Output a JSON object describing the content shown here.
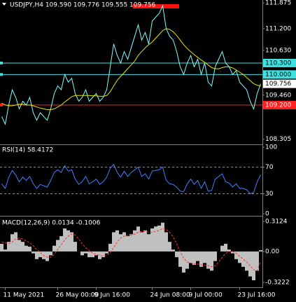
{
  "chart_data": [
    {
      "type": "line",
      "title": "USDJPY,H4  109.590 109.776 109.555 109.756",
      "ylim": [
        108.19,
        111.95
      ],
      "yticks": [
        {
          "value": 111.875,
          "label": "111.875"
        },
        {
          "value": 111.2,
          "label": "111.200"
        },
        {
          "value": 110.63,
          "label": "110.630"
        },
        {
          "value": 109.46,
          "label": "109.460"
        },
        {
          "value": 108.305,
          "label": "108.305"
        }
      ],
      "series": [
        {
          "color": "#7fffff",
          "values": [
            108.9,
            108.7,
            109.2,
            109.6,
            109.4,
            109.1,
            109.3,
            109.2,
            109.4,
            109.0,
            108.8,
            109.0,
            108.9,
            108.8,
            109.1,
            109.5,
            109.7,
            109.6,
            110.0,
            109.8,
            109.9,
            109.5,
            109.3,
            109.4,
            109.6,
            109.3,
            109.4,
            109.5,
            109.3,
            109.4,
            109.6,
            110.2,
            110.8,
            110.5,
            110.3,
            110.6,
            110.4,
            110.7,
            111.0,
            111.3,
            110.9,
            111.1,
            110.8,
            111.4,
            111.5,
            111.6,
            111.8,
            111.2,
            111.0,
            110.9,
            110.6,
            110.2,
            110.0,
            110.3,
            110.5,
            110.2,
            110.4,
            110.0,
            110.3,
            109.8,
            109.7,
            110.2,
            110.4,
            110.6,
            110.3,
            110.2,
            110.0,
            110.1,
            109.8,
            109.7,
            109.6,
            109.3,
            109.1,
            109.5,
            109.756
          ]
        },
        {
          "color": "#e6e600",
          "values": [
            109.25,
            109.2,
            109.18,
            109.18,
            109.2,
            109.22,
            109.22,
            109.2,
            109.2,
            109.18,
            109.15,
            109.12,
            109.1,
            109.08,
            109.08,
            109.1,
            109.15,
            109.2,
            109.28,
            109.35,
            109.42,
            109.45,
            109.45,
            109.45,
            109.45,
            109.45,
            109.44,
            109.44,
            109.43,
            109.43,
            109.45,
            109.55,
            109.7,
            109.85,
            109.95,
            110.05,
            110.15,
            110.25,
            110.35,
            110.5,
            110.6,
            110.7,
            110.78,
            110.85,
            110.95,
            111.05,
            111.15,
            111.2,
            111.18,
            111.12,
            111.02,
            110.9,
            110.78,
            110.68,
            110.6,
            110.52,
            110.45,
            110.38,
            110.32,
            110.25,
            110.18,
            110.15,
            110.15,
            110.18,
            110.2,
            110.2,
            110.17,
            110.12,
            110.06,
            110.0,
            109.92,
            109.84,
            109.76,
            109.72,
            109.7
          ]
        }
      ],
      "hlines": [
        {
          "value": 110.3,
          "label": "110.300",
          "color": "#40e0e0",
          "text_color": "#000"
        },
        {
          "value": 110.0,
          "label": "110.000",
          "color": "#40e0e0",
          "text_color": "#000"
        },
        {
          "value": 109.2,
          "label": "109.200",
          "color": "#ff2020",
          "text_color": "#fff"
        }
      ],
      "last": {
        "value": 109.756,
        "label": "109.756"
      }
    },
    {
      "type": "line",
      "title": "RSI(14) 58.4172",
      "ylim": [
        0,
        100
      ],
      "yticks": [
        100,
        70,
        30,
        0
      ],
      "levels": [
        70,
        30
      ],
      "series": [
        {
          "color": "#3f7fff",
          "values": [
            45,
            38,
            55,
            65,
            58,
            48,
            55,
            50,
            56,
            45,
            38,
            44,
            42,
            40,
            50,
            62,
            66,
            62,
            72,
            64,
            66,
            52,
            44,
            48,
            56,
            45,
            48,
            52,
            44,
            48,
            55,
            68,
            74,
            62,
            55,
            64,
            56,
            62,
            66,
            70,
            56,
            60,
            52,
            64,
            65,
            66,
            70,
            50,
            45,
            44,
            40,
            34,
            33,
            45,
            52,
            44,
            50,
            38,
            48,
            34,
            35,
            52,
            56,
            60,
            48,
            46,
            40,
            45,
            38,
            38,
            36,
            30,
            32,
            48,
            58.4172
          ]
        }
      ]
    },
    {
      "type": "macd",
      "title": "MACD(12,26,9) 0.0134 -0.1006",
      "ylim": [
        -0.373,
        0.364
      ],
      "yticks": [
        0.3124,
        {
          "value": 0,
          "label": "0.00"
        },
        -0.3222
      ],
      "series": [
        {
          "type": "bar",
          "color": "#c0c0c0",
          "values": [
            0.08,
            0.02,
            0.1,
            0.18,
            0.2,
            0.12,
            0.1,
            0.06,
            0.05,
            -0.02,
            -0.08,
            -0.06,
            -0.08,
            -0.1,
            -0.04,
            0.06,
            0.12,
            0.16,
            0.24,
            0.22,
            0.2,
            0.1,
            0.0,
            -0.04,
            -0.02,
            -0.06,
            -0.06,
            -0.04,
            -0.08,
            -0.06,
            -0.02,
            0.08,
            0.2,
            0.22,
            0.18,
            0.2,
            0.16,
            0.18,
            0.22,
            0.26,
            0.2,
            0.22,
            0.18,
            0.24,
            0.26,
            0.27,
            0.3,
            0.2,
            0.1,
            0.02,
            -0.06,
            -0.16,
            -0.22,
            -0.18,
            -0.12,
            -0.14,
            -0.1,
            -0.16,
            -0.12,
            -0.18,
            -0.2,
            -0.1,
            0.0,
            0.06,
            0.08,
            0.02,
            -0.02,
            -0.08,
            -0.12,
            -0.16,
            -0.2,
            -0.26,
            -0.3,
            -0.2,
            0.0134
          ]
        },
        {
          "type": "line",
          "color": "#ff3030",
          "values": [
            0.1,
            0.09,
            0.08,
            0.1,
            0.13,
            0.14,
            0.13,
            0.11,
            0.09,
            0.06,
            0.02,
            -0.01,
            -0.04,
            -0.06,
            -0.06,
            -0.03,
            0.02,
            0.07,
            0.12,
            0.16,
            0.18,
            0.17,
            0.13,
            0.08,
            0.04,
            0.01,
            -0.02,
            -0.03,
            -0.04,
            -0.05,
            -0.04,
            -0.01,
            0.04,
            0.1,
            0.14,
            0.16,
            0.17,
            0.17,
            0.18,
            0.2,
            0.21,
            0.21,
            0.2,
            0.2,
            0.21,
            0.22,
            0.24,
            0.23,
            0.2,
            0.15,
            0.08,
            0.0,
            -0.07,
            -0.11,
            -0.12,
            -0.13,
            -0.13,
            -0.14,
            -0.14,
            -0.15,
            -0.16,
            -0.15,
            -0.11,
            -0.06,
            -0.02,
            0.0,
            0.0,
            -0.02,
            -0.05,
            -0.08,
            -0.11,
            -0.15,
            -0.19,
            -0.2,
            -0.1006
          ]
        }
      ],
      "categories": [
        null,
        "11 May 2021",
        null,
        null,
        null,
        null,
        null,
        null,
        null,
        null,
        null,
        null,
        null,
        null,
        null,
        null,
        "26 May 00:00",
        null,
        null,
        null,
        null,
        null,
        null,
        null,
        null,
        null,
        null,
        "9 Jun 16:00",
        null,
        null,
        null,
        null,
        null,
        null,
        null,
        null,
        null,
        null,
        null,
        null,
        null,
        null,
        null,
        "24 Jun 08:00",
        null,
        null,
        null,
        null,
        null,
        null,
        null,
        null,
        null,
        null,
        "9 Jul 00:00",
        null,
        null,
        null,
        null,
        null,
        null,
        null,
        null,
        null,
        null,
        null,
        null,
        null,
        "23 Jul 16:00",
        null,
        null,
        null,
        null,
        null,
        null
      ]
    }
  ]
}
